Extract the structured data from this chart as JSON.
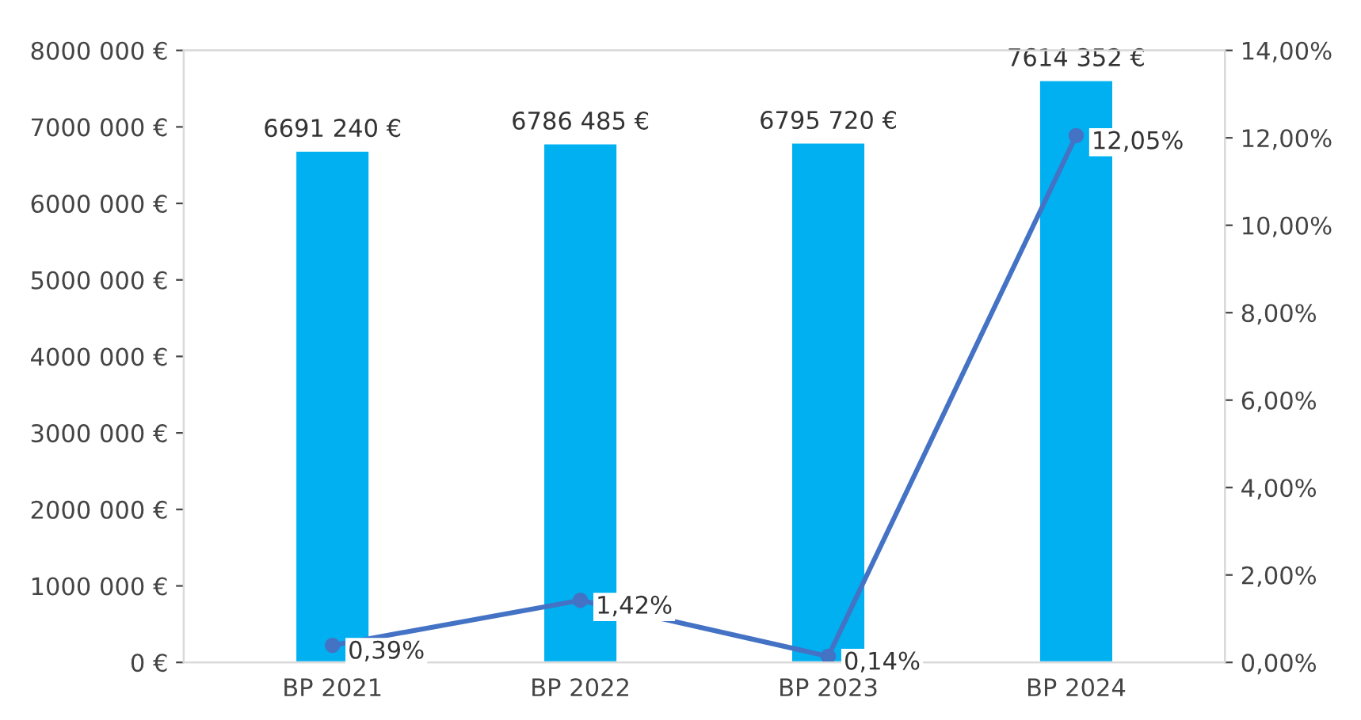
{
  "chart_data": {
    "type": "bar",
    "categories": [
      "BP 2021",
      "BP 2022",
      "BP 2023",
      "BP 2024"
    ],
    "series": [
      {
        "color": "#00b0f0",
        "values": [
          6691240,
          6786485,
          6795720,
          7614352
        ],
        "value_labels": [
          "6691 240 €",
          "6786 485 €",
          "6795 720 €",
          "7614 352 €"
        ]
      },
      {
        "type": "line",
        "axis": "y2",
        "color": "#4472c4",
        "marker": "circle",
        "line_style": "solid",
        "values": [
          0.39,
          1.42,
          0.14,
          12.05
        ],
        "value_labels": [
          "0,39%",
          "1,42%",
          "0,14%",
          "12,05%"
        ]
      }
    ],
    "ylim": [
      0,
      8000000
    ],
    "yticks": [
      {
        "value": 0,
        "label": "0 €"
      },
      {
        "value": 1000000,
        "label": "1000 000 €"
      },
      {
        "value": 2000000,
        "label": "2000 000 €"
      },
      {
        "value": 3000000,
        "label": "3000 000 €"
      },
      {
        "value": 4000000,
        "label": "4000 000 €"
      },
      {
        "value": 5000000,
        "label": "5000 000 €"
      },
      {
        "value": 6000000,
        "label": "6000 000 €"
      },
      {
        "value": 7000000,
        "label": "7000 000 €"
      },
      {
        "value": 8000000,
        "label": "8000 000 €"
      }
    ],
    "y2lim": [
      0,
      14
    ],
    "y2ticks": [
      {
        "value": 0,
        "label": "0,00%"
      },
      {
        "value": 2,
        "label": "2,00%"
      },
      {
        "value": 4,
        "label": "4,00%"
      },
      {
        "value": 6,
        "label": "6,00%"
      },
      {
        "value": 8,
        "label": "8,00%"
      },
      {
        "value": 10,
        "label": "10,00%"
      },
      {
        "value": 12,
        "label": "12,00%"
      },
      {
        "value": 14,
        "label": "14,00%"
      }
    ],
    "grid": false,
    "legend": false
  }
}
